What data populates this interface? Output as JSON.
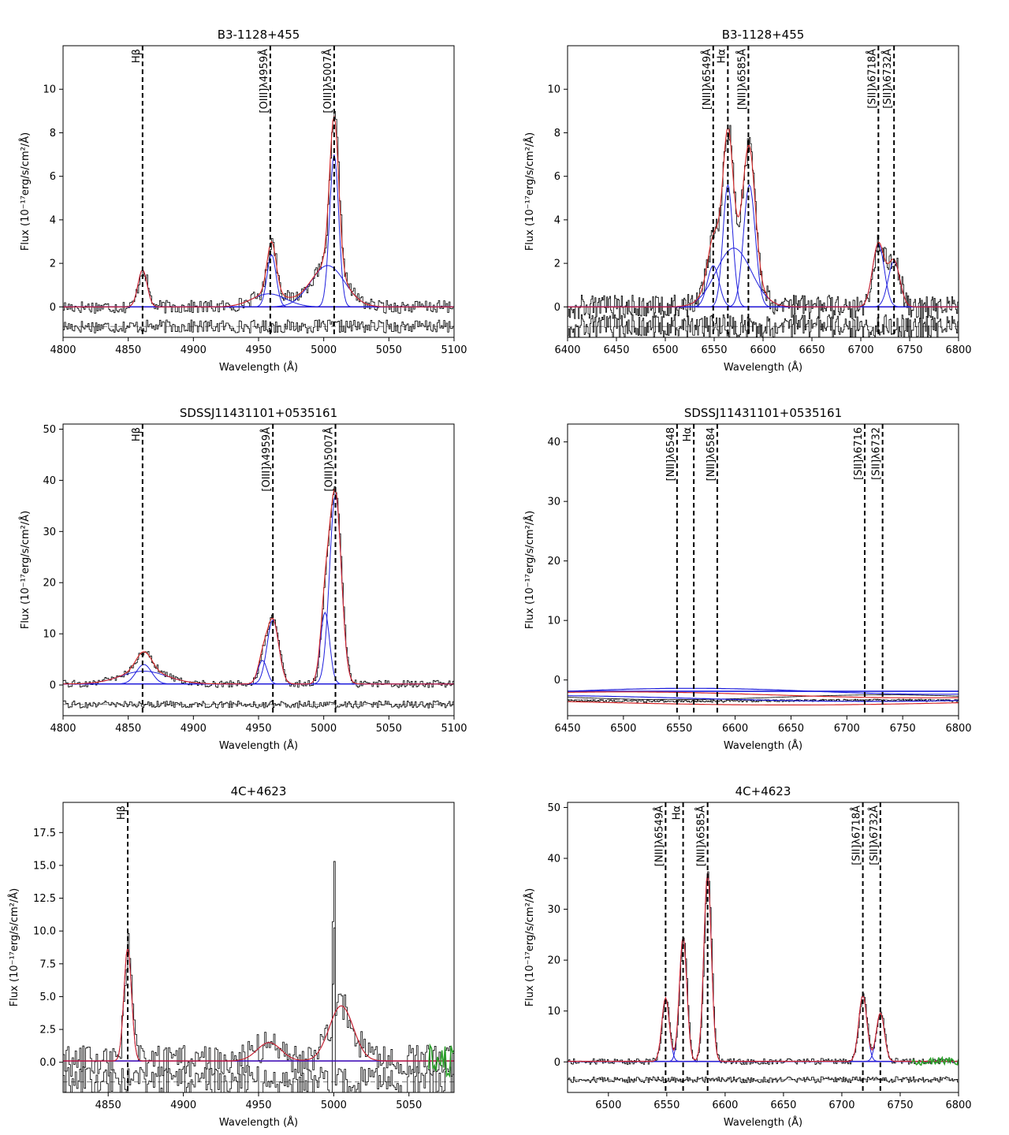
{
  "chart_data": [
    {
      "type": "line",
      "panel": "top-left",
      "title": "B3-1128+455",
      "xlabel": "Wavelength (Å)",
      "ylabel": "Flux (10⁻¹⁷erg/s/cm²/Å)",
      "xlim": [
        4800,
        5100
      ],
      "ylim": [
        -1.4,
        12
      ],
      "xticks": [
        4800,
        4850,
        4900,
        4950,
        5000,
        5050,
        5100
      ],
      "yticks": [
        0,
        2,
        4,
        6,
        8,
        10
      ],
      "tick_labels_y": [
        "0",
        "2",
        "4",
        "6",
        "8",
        "10"
      ],
      "lines": [
        {
          "label": "Hβ",
          "x": 4861
        },
        {
          "label": "[OIII]λ4959Å",
          "x": 4959
        },
        {
          "label": "[OIII]λ5007Å",
          "x": 5008
        }
      ],
      "gaussians": [
        {
          "center": 4861,
          "amp": 1.7,
          "sigma": 3.5
        },
        {
          "center": 4960,
          "amp": 2.4,
          "sigma": 3.5
        },
        {
          "center": 4958,
          "amp": 0.6,
          "sigma": 13
        },
        {
          "center": 5008,
          "amp": 7.0,
          "sigma": 3.5
        },
        {
          "center": 5003,
          "amp": 1.9,
          "sigma": 13
        }
      ],
      "noise": 0.3,
      "residual_offset": -0.9,
      "continuum": 0
    },
    {
      "type": "line",
      "panel": "top-right",
      "title": "B3-1128+455",
      "xlabel": "Wavelength (Å)",
      "ylabel": "Flux (10⁻¹⁷erg/s/cm²/Å)",
      "xlim": [
        6400,
        6800
      ],
      "ylim": [
        -1.4,
        12
      ],
      "xticks": [
        6400,
        6450,
        6500,
        6550,
        6600,
        6650,
        6700,
        6750,
        6800
      ],
      "yticks": [
        0,
        2,
        4,
        6,
        8,
        10
      ],
      "tick_labels_y": [
        "0",
        "2",
        "4",
        "6",
        "8",
        "10"
      ],
      "lines": [
        {
          "label": "[NII]λ6549Å",
          "x": 6549
        },
        {
          "label": "Hα",
          "x": 6564
        },
        {
          "label": "[NII]λ6585Å",
          "x": 6585
        },
        {
          "label": "[SII]λ6718Å",
          "x": 6718
        },
        {
          "label": "[SII]λ6732Å",
          "x": 6734
        }
      ],
      "gaussians": [
        {
          "center": 6549,
          "amp": 1.9,
          "sigma": 6
        },
        {
          "center": 6564,
          "amp": 5.6,
          "sigma": 5
        },
        {
          "center": 6570,
          "amp": 2.7,
          "sigma": 18
        },
        {
          "center": 6586,
          "amp": 5.6,
          "sigma": 6
        },
        {
          "center": 6718,
          "amp": 2.9,
          "sigma": 6
        },
        {
          "center": 6734,
          "amp": 2.1,
          "sigma": 6
        }
      ],
      "noise": 0.55,
      "residual_offset": -0.9,
      "continuum": 0
    },
    {
      "type": "line",
      "panel": "middle-left",
      "title": "SDSSJ11431101+0535161",
      "xlabel": "Wavelength (Å)",
      "ylabel": "Flux (10⁻¹⁷erg/s/cm²/Å)",
      "xlim": [
        4800,
        5100
      ],
      "ylim": [
        -6,
        51
      ],
      "xticks": [
        4800,
        4850,
        4900,
        4950,
        5000,
        5050,
        5100
      ],
      "yticks": [
        0,
        10,
        20,
        30,
        40,
        50
      ],
      "tick_labels_y": [
        "0",
        "10",
        "20",
        "30",
        "40",
        "50"
      ],
      "lines": [
        {
          "label": "Hβ",
          "x": 4861
        },
        {
          "label": "[OIII]λ4959Å",
          "x": 4961
        },
        {
          "label": "[OIII]λ5007Å",
          "x": 5009
        }
      ],
      "gaussians": [
        {
          "center": 4862,
          "amp": 3.8,
          "sigma": 6
        },
        {
          "center": 4862,
          "amp": 2.5,
          "sigma": 18
        },
        {
          "center": 4961,
          "amp": 12.5,
          "sigma": 4.5
        },
        {
          "center": 4953,
          "amp": 4.6,
          "sigma": 3.5
        },
        {
          "center": 5009,
          "amp": 37,
          "sigma": 4.5
        },
        {
          "center": 5001,
          "amp": 14,
          "sigma": 3.5
        }
      ],
      "noise": 0.7,
      "residual_offset": -3.8,
      "continuum": 0.2
    },
    {
      "type": "line",
      "panel": "middle-right",
      "title": "SDSSJ11431101+0535161",
      "xlabel": "Wavelength (Å)",
      "ylabel": "Flux (10⁻¹⁷erg/s/cm²/Å)",
      "xlim": [
        6450,
        6800
      ],
      "ylim": [
        -6,
        43
      ],
      "xticks": [
        6450,
        6500,
        6550,
        6600,
        6650,
        6700,
        6750,
        6800
      ],
      "yticks": [
        0,
        10,
        20,
        30,
        40
      ],
      "tick_labels_y": [
        "0",
        "10",
        "20",
        "30",
        "40"
      ],
      "lines": [
        {
          "label": "[NII]λ6548",
          "x": 6548
        },
        {
          "label": "Hα",
          "x": 6563
        },
        {
          "label": "[NII]λ6584",
          "x": 6584
        },
        {
          "label": "[SII]λ6716",
          "x": 6716
        },
        {
          "label": "[SII]λ6732",
          "x": 6732
        }
      ],
      "gaussians": [],
      "noise": 0,
      "residual_offset": -3.3,
      "continuum": -1.9
    },
    {
      "type": "line",
      "panel": "bottom-left",
      "title": "4C+4623",
      "xlabel": "Wavelength (Å)",
      "ylabel": "Flux (10⁻¹⁷erg/s/cm²/Å)",
      "xlim": [
        4820,
        5080
      ],
      "ylim": [
        -2.3,
        19.8
      ],
      "xticks": [
        4850,
        4900,
        4950,
        5000,
        5050
      ],
      "yticks": [
        0,
        2.5,
        5,
        7.5,
        10,
        12.5,
        15,
        17.5
      ],
      "tick_labels_y": [
        "0.0",
        "2.5",
        "5.0",
        "7.5",
        "10.0",
        "12.5",
        "15.0",
        "17.5"
      ],
      "lines": [
        {
          "label": "Hβ",
          "x": 4863
        }
      ],
      "gaussians": [
        {
          "center": 4863,
          "amp": 8.7,
          "sigma": 2.5
        },
        {
          "center": 4957,
          "amp": 1.4,
          "sigma": 8
        },
        {
          "center": 5005,
          "amp": 4.2,
          "sigma": 8
        }
      ],
      "noise": 1.2,
      "residual_offset": -1.5,
      "continuum": 0.1,
      "spike": {
        "x": 5000,
        "value": 15.3
      },
      "green_segment": {
        "from": 5063,
        "to": 5080
      }
    },
    {
      "type": "line",
      "panel": "bottom-right",
      "title": "4C+4623",
      "xlabel": "Wavelength (Å)",
      "ylabel": "Flux (10⁻¹⁷erg/s/cm²/Å)",
      "xlim": [
        6465,
        6800
      ],
      "ylim": [
        -6,
        51
      ],
      "xticks": [
        6500,
        6550,
        6600,
        6650,
        6700,
        6750,
        6800
      ],
      "yticks": [
        0,
        10,
        20,
        30,
        40,
        50
      ],
      "tick_labels_y": [
        "0",
        "10",
        "20",
        "30",
        "40",
        "50"
      ],
      "lines": [
        {
          "label": "[NII]λ6549Å",
          "x": 6549
        },
        {
          "label": "Hα",
          "x": 6564
        },
        {
          "label": "[NII]λ6585Å",
          "x": 6585
        },
        {
          "label": "[SII]λ6718Å",
          "x": 6718
        },
        {
          "label": "[SII]λ6732Å",
          "x": 6733
        }
      ],
      "gaussians": [
        {
          "center": 6549,
          "amp": 12.5,
          "sigma": 3.2
        },
        {
          "center": 6564,
          "amp": 24.5,
          "sigma": 3.2
        },
        {
          "center": 6585,
          "amp": 37,
          "sigma": 3.2
        },
        {
          "center": 6718,
          "amp": 13,
          "sigma": 3.5
        },
        {
          "center": 6733,
          "amp": 9.5,
          "sigma": 3.5
        }
      ],
      "noise": 0.6,
      "residual_offset": -3.5,
      "continuum": 0.1,
      "green_segment": {
        "from": 6760,
        "to": 6800
      }
    }
  ],
  "colors": {
    "data": "#000000",
    "model": "#d62728",
    "components": "#1f1fdd",
    "continuum_fit": "#800080",
    "masked": "#2ca02c",
    "residual_zero": "#808080"
  }
}
